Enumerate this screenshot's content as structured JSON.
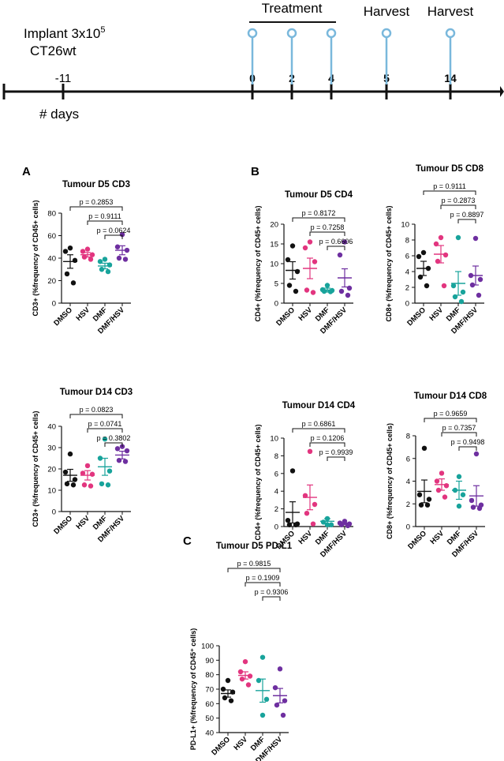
{
  "timeline": {
    "implant_label": "Implant 3x10",
    "implant_sup": "5",
    "cell_line": "CT26wt",
    "days_label": "# days",
    "treatment_label": "Treatment",
    "harvest_label_1": "Harvest",
    "harvest_label_2": "Harvest",
    "ticks": [
      "-11",
      "0",
      "2",
      "4",
      "5",
      "14"
    ]
  },
  "panel_letters": [
    "A",
    "B",
    "C"
  ],
  "colors": {
    "DMSO": "#111111",
    "HSV": "#e2357f",
    "DMF": "#18a39b",
    "DMF/HSV": "#6e2fa0",
    "timeline_marker": "#7ab8dc",
    "axis": "#111111"
  },
  "chart_data": [
    {
      "id": "d5cd3",
      "type": "scatter",
      "title": "Tumour D5 CD3",
      "ylabel": "CD3+ (%frequency of CD45+ cells)",
      "ylim": [
        0,
        80
      ],
      "yticks": [
        0,
        20,
        40,
        60,
        80
      ],
      "categories": [
        "DMSO",
        "HSV",
        "DMF",
        "DMF/HSV"
      ],
      "series": [
        {
          "name": "DMSO",
          "points": [
            49,
            46,
            38,
            26,
            18
          ],
          "mean": 37,
          "sem": 6
        },
        {
          "name": "HSV",
          "points": [
            48,
            46,
            43,
            41,
            39
          ],
          "mean": 43,
          "sem": 2
        },
        {
          "name": "DMF",
          "points": [
            39,
            37,
            34,
            30,
            28
          ],
          "mean": 33,
          "sem": 2.5
        },
        {
          "name": "DMF/HSV",
          "points": [
            61,
            50,
            47,
            40,
            39
          ],
          "mean": 47,
          "sem": 4
        }
      ],
      "pvalues": [
        {
          "text": "p = 0.2853",
          "from": "DMSO",
          "to": "DMF/HSV"
        },
        {
          "text": "p = 0.9111",
          "from": "HSV",
          "to": "DMF/HSV"
        },
        {
          "text": "p = 0.0624",
          "from": "DMF",
          "to": "DMF/HSV"
        }
      ]
    },
    {
      "id": "d5cd4",
      "type": "scatter",
      "title": "Tumour D5 CD4",
      "ylabel": "CD4+ (%frequency of CD45+ cells)",
      "ylim": [
        0,
        20
      ],
      "yticks": [
        0,
        5,
        10,
        15,
        20
      ],
      "categories": [
        "DMSO",
        "HSV",
        "DMF",
        "DMF/HSV"
      ],
      "series": [
        {
          "name": "DMSO",
          "points": [
            14.5,
            11,
            8,
            4.5,
            3
          ],
          "mean": 8.3,
          "sem": 2.2
        },
        {
          "name": "HSV",
          "points": [
            15.5,
            14,
            10.5,
            3.3,
            2.7
          ],
          "mean": 8.8,
          "sem": 2.6
        },
        {
          "name": "DMF",
          "points": [
            4.5,
            3.4,
            3.2,
            3,
            2.9
          ],
          "mean": 3.3,
          "sem": 0.5
        },
        {
          "name": "DMF/HSV",
          "points": [
            15.5,
            12.2,
            3.8,
            3,
            2
          ],
          "mean": 6.4,
          "sem": 2.3
        }
      ],
      "pvalues": [
        {
          "text": "p = 0.8172",
          "from": "DMSO",
          "to": "DMF/HSV"
        },
        {
          "text": "p = 0.7258",
          "from": "HSV",
          "to": "DMF/HSV"
        },
        {
          "text": "p = 0.6606",
          "from": "DMF",
          "to": "DMF/HSV"
        }
      ]
    },
    {
      "id": "d5cd8",
      "type": "scatter",
      "title": "Tumour D5 CD8",
      "ylabel": "CD8+ (%frequency of CD45+ cells)",
      "ylim": [
        0,
        10
      ],
      "yticks": [
        0,
        2,
        4,
        6,
        8,
        10
      ],
      "categories": [
        "DMSO",
        "HSV",
        "DMF",
        "DMF/HSV"
      ],
      "series": [
        {
          "name": "DMSO",
          "points": [
            6.4,
            5.9,
            4.4,
            3.3,
            2.2
          ],
          "mean": 4.4,
          "sem": 0.9
        },
        {
          "name": "HSV",
          "points": [
            8.3,
            7.5,
            6.1,
            5.3,
            2.2
          ],
          "mean": 6.2,
          "sem": 1.1
        },
        {
          "name": "DMF",
          "points": [
            8.3,
            2.2,
            1.4,
            0.8,
            0.2
          ],
          "mean": 2.5,
          "sem": 1.5
        },
        {
          "name": "DMF/HSV",
          "points": [
            8.2,
            3.5,
            3.0,
            2.3,
            1.0
          ],
          "mean": 3.5,
          "sem": 1.2
        }
      ],
      "pvalues": [
        {
          "text": "p = 0.9111",
          "from": "DMSO",
          "to": "DMF/HSV"
        },
        {
          "text": "p = 0.2873",
          "from": "HSV",
          "to": "DMF/HSV"
        },
        {
          "text": "p = 0.8897",
          "from": "DMF",
          "to": "DMF/HSV"
        }
      ]
    },
    {
      "id": "d14cd3",
      "type": "scatter",
      "title": "Tumour D14 CD3",
      "ylabel": "CD3+ (%frequency of CD45+ cells)",
      "ylim": [
        0,
        40
      ],
      "yticks": [
        0,
        10,
        20,
        30,
        40
      ],
      "categories": [
        "DMSO",
        "HSV",
        "DMF",
        "DMF/HSV"
      ],
      "series": [
        {
          "name": "DMSO",
          "points": [
            27,
            18.5,
            15,
            13,
            12.5
          ],
          "mean": 17,
          "sem": 2.8
        },
        {
          "name": "HSV",
          "points": [
            21.5,
            18,
            17.5,
            12.5,
            12
          ],
          "mean": 17,
          "sem": 2.2
        },
        {
          "name": "DMF",
          "points": [
            34,
            25,
            19,
            13,
            12.5
          ],
          "mean": 21,
          "sem": 4
        },
        {
          "name": "DMF/HSV",
          "points": [
            30.5,
            29.5,
            28.5,
            24,
            23.5
          ],
          "mean": 26.5,
          "sem": 1.8
        }
      ],
      "pvalues": [
        {
          "text": "p = 0.0823",
          "from": "DMSO",
          "to": "DMF/HSV"
        },
        {
          "text": "p = 0.0741",
          "from": "HSV",
          "to": "DMF/HSV"
        },
        {
          "text": "p = 0.3802",
          "from": "DMF",
          "to": "DMF/HSV"
        }
      ]
    },
    {
      "id": "d14cd4",
      "type": "scatter",
      "title": "Tumour D14 CD4",
      "ylabel": "CD4+ (%frequency of CD45+ cells)",
      "ylim": [
        0,
        10
      ],
      "yticks": [
        0,
        2,
        4,
        6,
        8,
        10
      ],
      "categories": [
        "DMSO",
        "HSV",
        "DMF",
        "DMF/HSV"
      ],
      "series": [
        {
          "name": "DMSO",
          "points": [
            6.3,
            0.7,
            0.3,
            0.2,
            0.2
          ],
          "mean": 1.6,
          "sem": 1.2
        },
        {
          "name": "HSV",
          "points": [
            8.5,
            3.5,
            2.5,
            1.5,
            0.3
          ],
          "mean": 3.3,
          "sem": 1.4
        },
        {
          "name": "DMF",
          "points": [
            0.9,
            0.5,
            0.2,
            0.2
          ],
          "mean": 0.6,
          "sem": 0.3
        },
        {
          "name": "DMF/HSV",
          "points": [
            0.6,
            0.4,
            0.3,
            0.2,
            0.1
          ],
          "mean": 0.3,
          "sem": 0.1
        }
      ],
      "pvalues": [
        {
          "text": "p = 0.6861",
          "from": "DMSO",
          "to": "DMF/HSV"
        },
        {
          "text": "p = 0.1206",
          "from": "HSV",
          "to": "DMF/HSV"
        },
        {
          "text": "p = 0.9939",
          "from": "DMF",
          "to": "DMF/HSV"
        }
      ]
    },
    {
      "id": "d14cd8",
      "type": "scatter",
      "title": "Tumour D14 CD8",
      "ylabel": "CD8+ (%frequency of CD45+ cells)",
      "ylim": [
        0,
        8
      ],
      "yticks": [
        0,
        2,
        4,
        6,
        8
      ],
      "categories": [
        "DMSO",
        "HSV",
        "DMF",
        "DMF/HSV"
      ],
      "series": [
        {
          "name": "DMSO",
          "points": [
            6.9,
            2.8,
            2.4,
            1.9,
            1.9
          ],
          "mean": 3.1,
          "sem": 1.0
        },
        {
          "name": "HSV",
          "points": [
            4.7,
            4.0,
            3.6,
            3.2,
            2.6
          ],
          "mean": 3.7,
          "sem": 0.5
        },
        {
          "name": "DMF",
          "points": [
            4.4,
            3.2,
            2.8,
            1.8
          ],
          "mean": 3.2,
          "sem": 0.8
        },
        {
          "name": "DMF/HSV",
          "points": [
            6.4,
            2.3,
            1.9,
            1.7,
            1.6
          ],
          "mean": 2.7,
          "sem": 0.9
        }
      ],
      "pvalues": [
        {
          "text": "p = 0.9659",
          "from": "DMSO",
          "to": "DMF/HSV"
        },
        {
          "text": "p = 0.7357",
          "from": "HSV",
          "to": "DMF/HSV"
        },
        {
          "text": "p = 0.9498",
          "from": "DMF",
          "to": "DMF/HSV"
        }
      ]
    },
    {
      "id": "d5pdl1",
      "type": "scatter",
      "title": "Tumour D5 PD-L1",
      "ylabel": "PD-L1+ (%frequency of CD45⁺ cells)",
      "ylim": [
        40,
        100
      ],
      "yticks": [
        40,
        50,
        60,
        70,
        80,
        90,
        100
      ],
      "categories": [
        "DMSO",
        "HSV",
        "DMF",
        "DMF/HSV"
      ],
      "series": [
        {
          "name": "DMSO",
          "points": [
            76,
            70,
            68,
            64,
            62
          ],
          "mean": 67,
          "sem": 2.5
        },
        {
          "name": "HSV",
          "points": [
            89,
            82,
            79,
            77,
            73
          ],
          "mean": 79.5,
          "sem": 2.5
        },
        {
          "name": "DMF",
          "points": [
            92,
            76,
            63,
            52
          ],
          "mean": 69,
          "sem": 8
        },
        {
          "name": "DMF/HSV",
          "points": [
            84,
            71,
            62,
            59,
            52
          ],
          "mean": 65.5,
          "sem": 5
        }
      ],
      "pvalues": [
        {
          "text": "p = 0.9815",
          "from": "DMSO",
          "to": "DMF/HSV"
        },
        {
          "text": "p = 0.1909",
          "from": "HSV",
          "to": "DMF/HSV"
        },
        {
          "text": "p = 0.9306",
          "from": "DMF",
          "to": "DMF/HSV"
        }
      ]
    }
  ]
}
